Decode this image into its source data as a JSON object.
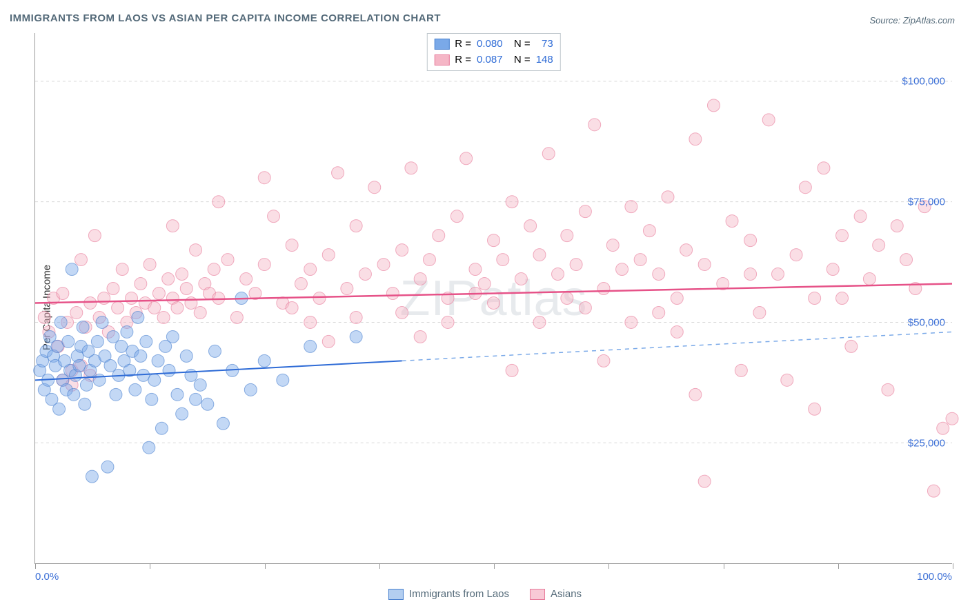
{
  "title": "IMMIGRANTS FROM LAOS VS ASIAN PER CAPITA INCOME CORRELATION CHART",
  "source": "Source: ZipAtlas.com",
  "y_axis_title": "Per Capita Income",
  "watermark": "ZIPatlas",
  "chart": {
    "type": "scatter",
    "xlim": [
      0,
      100
    ],
    "ylim": [
      0,
      110000
    ],
    "y_gridlines": [
      25000,
      50000,
      75000,
      100000
    ],
    "y_labels": [
      "$25,000",
      "$50,000",
      "$75,000",
      "$100,000"
    ],
    "x_ticks": [
      0,
      12.5,
      25,
      37.5,
      50,
      62.5,
      75,
      87.5,
      100
    ],
    "x_labels_shown": {
      "min": "0.0%",
      "max": "100.0%"
    },
    "background_color": "#ffffff",
    "grid_color": "#d8d8d8",
    "axis_color": "#999999",
    "marker_radius": 9,
    "marker_opacity": 0.45,
    "series": [
      {
        "name": "Immigrants from Laos",
        "fill_color": "#7aa9e8",
        "stroke_color": "#4a81cf",
        "R": "0.080",
        "N": "73",
        "trend": {
          "x1": 0,
          "y1": 38000,
          "x2_solid": 40,
          "y2_solid": 42000,
          "x2_dash": 100,
          "y2_dash": 48000,
          "solid_color": "#2e6bd6",
          "dash_color": "#7aa9e8",
          "width": 2
        },
        "points": [
          [
            0.5,
            40000
          ],
          [
            0.8,
            42000
          ],
          [
            1.0,
            36000
          ],
          [
            1.2,
            44000
          ],
          [
            1.4,
            38000
          ],
          [
            1.6,
            47000
          ],
          [
            1.8,
            34000
          ],
          [
            2.0,
            43000
          ],
          [
            2.2,
            41000
          ],
          [
            2.4,
            45000
          ],
          [
            2.6,
            32000
          ],
          [
            2.8,
            50000
          ],
          [
            3.0,
            38000
          ],
          [
            3.2,
            42000
          ],
          [
            3.4,
            36000
          ],
          [
            3.6,
            46000
          ],
          [
            3.8,
            40000
          ],
          [
            4.0,
            61000
          ],
          [
            4.2,
            35000
          ],
          [
            4.4,
            39000
          ],
          [
            4.6,
            43000
          ],
          [
            4.8,
            41000
          ],
          [
            5.0,
            45000
          ],
          [
            5.2,
            49000
          ],
          [
            5.4,
            33000
          ],
          [
            5.6,
            37000
          ],
          [
            5.8,
            44000
          ],
          [
            6.0,
            40000
          ],
          [
            6.2,
            18000
          ],
          [
            6.5,
            42000
          ],
          [
            6.8,
            46000
          ],
          [
            7.0,
            38000
          ],
          [
            7.3,
            50000
          ],
          [
            7.6,
            43000
          ],
          [
            7.9,
            20000
          ],
          [
            8.2,
            41000
          ],
          [
            8.5,
            47000
          ],
          [
            8.8,
            35000
          ],
          [
            9.1,
            39000
          ],
          [
            9.4,
            45000
          ],
          [
            9.7,
            42000
          ],
          [
            10.0,
            48000
          ],
          [
            10.3,
            40000
          ],
          [
            10.6,
            44000
          ],
          [
            10.9,
            36000
          ],
          [
            11.2,
            51000
          ],
          [
            11.5,
            43000
          ],
          [
            11.8,
            39000
          ],
          [
            12.1,
            46000
          ],
          [
            12.4,
            24000
          ],
          [
            12.7,
            34000
          ],
          [
            13.0,
            38000
          ],
          [
            13.4,
            42000
          ],
          [
            13.8,
            28000
          ],
          [
            14.2,
            45000
          ],
          [
            14.6,
            40000
          ],
          [
            15.0,
            47000
          ],
          [
            15.5,
            35000
          ],
          [
            16.0,
            31000
          ],
          [
            16.5,
            43000
          ],
          [
            17.0,
            39000
          ],
          [
            17.5,
            34000
          ],
          [
            18.0,
            37000
          ],
          [
            18.8,
            33000
          ],
          [
            19.6,
            44000
          ],
          [
            20.5,
            29000
          ],
          [
            21.5,
            40000
          ],
          [
            22.5,
            55000
          ],
          [
            23.5,
            36000
          ],
          [
            25.0,
            42000
          ],
          [
            27.0,
            38000
          ],
          [
            30.0,
            45000
          ],
          [
            35.0,
            47000
          ]
        ]
      },
      {
        "name": "Asians",
        "fill_color": "#f5b6c6",
        "stroke_color": "#e77a9a",
        "R": "0.087",
        "N": "148",
        "trend": {
          "x1": 0,
          "y1": 54000,
          "x2_solid": 100,
          "y2_solid": 58000,
          "solid_color": "#e65288",
          "width": 2.5
        },
        "points": [
          [
            1,
            51000
          ],
          [
            1.5,
            48000
          ],
          [
            2,
            55000
          ],
          [
            2.5,
            45000
          ],
          [
            3,
            56000
          ],
          [
            3.5,
            50000
          ],
          [
            4,
            40000
          ],
          [
            4.5,
            52000
          ],
          [
            5,
            63000
          ],
          [
            5.5,
            49000
          ],
          [
            6,
            54000
          ],
          [
            6.5,
            68000
          ],
          [
            7,
            51000
          ],
          [
            7.5,
            55000
          ],
          [
            8,
            48000
          ],
          [
            8.5,
            57000
          ],
          [
            9,
            53000
          ],
          [
            9.5,
            61000
          ],
          [
            10,
            50000
          ],
          [
            10.5,
            55000
          ],
          [
            11,
            52000
          ],
          [
            11.5,
            58000
          ],
          [
            12,
            54000
          ],
          [
            12.5,
            62000
          ],
          [
            13,
            53000
          ],
          [
            13.5,
            56000
          ],
          [
            14,
            51000
          ],
          [
            14.5,
            59000
          ],
          [
            15,
            55000
          ],
          [
            15.5,
            53000
          ],
          [
            16,
            60000
          ],
          [
            16.5,
            57000
          ],
          [
            17,
            54000
          ],
          [
            17.5,
            65000
          ],
          [
            18,
            52000
          ],
          [
            18.5,
            58000
          ],
          [
            19,
            56000
          ],
          [
            19.5,
            61000
          ],
          [
            20,
            55000
          ],
          [
            21,
            63000
          ],
          [
            22,
            51000
          ],
          [
            23,
            59000
          ],
          [
            24,
            56000
          ],
          [
            25,
            62000
          ],
          [
            26,
            72000
          ],
          [
            27,
            54000
          ],
          [
            28,
            66000
          ],
          [
            29,
            58000
          ],
          [
            30,
            61000
          ],
          [
            31,
            55000
          ],
          [
            32,
            64000
          ],
          [
            33,
            81000
          ],
          [
            34,
            57000
          ],
          [
            35,
            70000
          ],
          [
            36,
            60000
          ],
          [
            37,
            78000
          ],
          [
            38,
            62000
          ],
          [
            39,
            56000
          ],
          [
            40,
            65000
          ],
          [
            41,
            82000
          ],
          [
            42,
            59000
          ],
          [
            43,
            63000
          ],
          [
            44,
            68000
          ],
          [
            45,
            55000
          ],
          [
            46,
            72000
          ],
          [
            47,
            84000
          ],
          [
            48,
            61000
          ],
          [
            49,
            58000
          ],
          [
            50,
            67000
          ],
          [
            51,
            63000
          ],
          [
            52,
            75000
          ],
          [
            53,
            59000
          ],
          [
            54,
            70000
          ],
          [
            55,
            64000
          ],
          [
            56,
            85000
          ],
          [
            57,
            60000
          ],
          [
            58,
            68000
          ],
          [
            59,
            62000
          ],
          [
            60,
            73000
          ],
          [
            61,
            91000
          ],
          [
            62,
            57000
          ],
          [
            63,
            66000
          ],
          [
            64,
            61000
          ],
          [
            65,
            74000
          ],
          [
            66,
            63000
          ],
          [
            67,
            69000
          ],
          [
            68,
            60000
          ],
          [
            69,
            76000
          ],
          [
            70,
            55000
          ],
          [
            71,
            65000
          ],
          [
            72,
            88000
          ],
          [
            73,
            62000
          ],
          [
            74,
            95000
          ],
          [
            75,
            58000
          ],
          [
            76,
            71000
          ],
          [
            77,
            40000
          ],
          [
            78,
            67000
          ],
          [
            79,
            52000
          ],
          [
            80,
            92000
          ],
          [
            81,
            60000
          ],
          [
            82,
            38000
          ],
          [
            83,
            64000
          ],
          [
            84,
            78000
          ],
          [
            85,
            55000
          ],
          [
            86,
            82000
          ],
          [
            87,
            61000
          ],
          [
            88,
            68000
          ],
          [
            89,
            45000
          ],
          [
            90,
            72000
          ],
          [
            91,
            59000
          ],
          [
            92,
            66000
          ],
          [
            93,
            36000
          ],
          [
            94,
            70000
          ],
          [
            95,
            63000
          ],
          [
            96,
            57000
          ],
          [
            97,
            74000
          ],
          [
            98,
            15000
          ],
          [
            99,
            28000
          ],
          [
            100,
            30000
          ],
          [
            3,
            38000
          ],
          [
            4,
            37000
          ],
          [
            5,
            41000
          ],
          [
            6,
            39000
          ],
          [
            32,
            46000
          ],
          [
            42,
            47000
          ],
          [
            52,
            40000
          ],
          [
            62,
            42000
          ],
          [
            72,
            35000
          ],
          [
            15,
            70000
          ],
          [
            20,
            75000
          ],
          [
            25,
            80000
          ],
          [
            73,
            17000
          ],
          [
            85,
            32000
          ],
          [
            50,
            54000
          ],
          [
            55,
            50000
          ],
          [
            60,
            53000
          ],
          [
            65,
            50000
          ],
          [
            70,
            48000
          ],
          [
            45,
            50000
          ],
          [
            40,
            52000
          ],
          [
            35,
            51000
          ],
          [
            30,
            50000
          ],
          [
            28,
            53000
          ],
          [
            48,
            56000
          ],
          [
            58,
            55000
          ],
          [
            68,
            52000
          ],
          [
            78,
            60000
          ],
          [
            88,
            55000
          ]
        ]
      }
    ]
  },
  "bottom_legend": {
    "items": [
      {
        "label": "Immigrants from Laos",
        "fill": "#b3cef0",
        "stroke": "#4a81cf"
      },
      {
        "label": "Asians",
        "fill": "#f8c9d6",
        "stroke": "#e77a9a"
      }
    ]
  }
}
